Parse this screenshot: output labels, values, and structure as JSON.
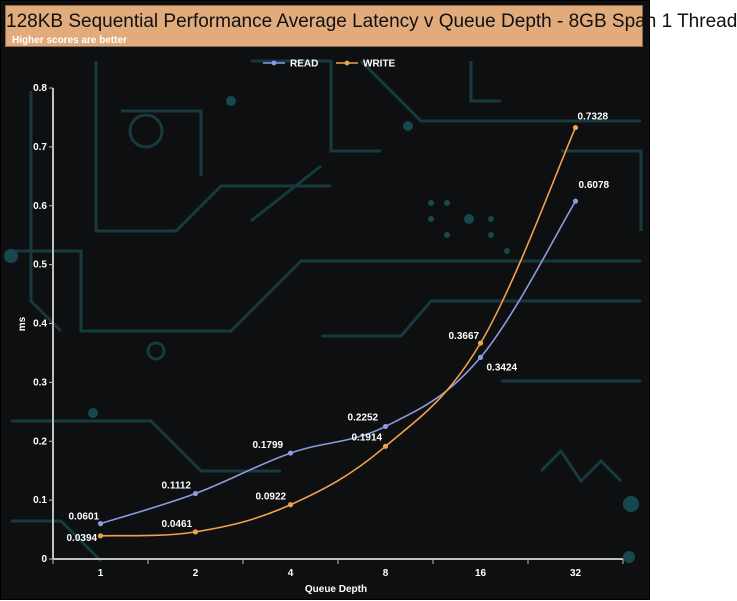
{
  "colors": {
    "background": "#0d0f10",
    "header": "#e2ab7c",
    "read": "#8a9be0",
    "write": "#f0a24e",
    "axis": "#bfbfbf",
    "decor": "#163a3e"
  },
  "chart_data": {
    "type": "line",
    "title": "128KB Sequential Performance Average Latency v Queue Depth - 8GB Span 1 Thread",
    "subtitle": "Higher scores are better",
    "xlabel": "Queue Depth",
    "ylabel": "ms",
    "categories": [
      "1",
      "2",
      "4",
      "8",
      "16",
      "32"
    ],
    "ylim": [
      0,
      0.8
    ],
    "yticks": [
      "0",
      "0.1",
      "0.2",
      "0.3",
      "0.4",
      "0.5",
      "0.6",
      "0.7",
      "0.8"
    ],
    "legend_position": "top-center",
    "grid": false,
    "series": [
      {
        "name": "READ",
        "color": "#8a9be0",
        "values": [
          0.0601,
          0.1112,
          0.1799,
          0.2252,
          0.3424,
          0.6078
        ],
        "labels": [
          "0.0601",
          "0.1112",
          "0.1799",
          "0.2252",
          "0.3424",
          "0.6078"
        ]
      },
      {
        "name": "WRITE",
        "color": "#f0a24e",
        "values": [
          0.0394,
          0.0461,
          0.0922,
          0.1914,
          0.3667,
          0.7328
        ],
        "labels": [
          "0.0394",
          "0.0461",
          "0.0922",
          "0.1914",
          "0.3667",
          "0.7328"
        ]
      }
    ]
  }
}
